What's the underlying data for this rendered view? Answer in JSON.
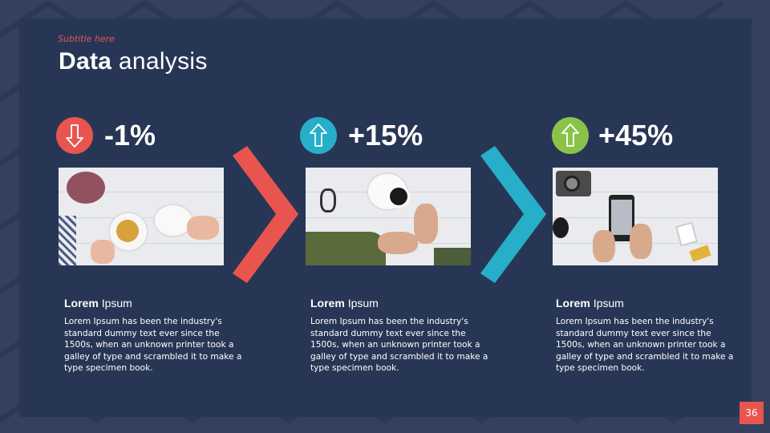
{
  "slide": {
    "subtitle": "Subtitle here",
    "title_bold": "Data",
    "title_light": "analysis",
    "page_number": "36"
  },
  "colors": {
    "red": "#e8554e",
    "blue": "#27aec9",
    "green": "#8bc34a",
    "panel": "#283655",
    "background": "#34405d"
  },
  "items": [
    {
      "value": "-1%",
      "icon": "arrow-down-icon",
      "color": "#e8554e",
      "heading_bold": "Lorem",
      "heading_light": "Ipsum",
      "text": "Lorem Ipsum has been the industry's standard dummy text ever since the 1500s, when an unknown printer took a galley of type and scrambled it to make a type specimen book."
    },
    {
      "value": "+15%",
      "icon": "arrow-up-icon",
      "color": "#27aec9",
      "heading_bold": "Lorem",
      "heading_light": "Ipsum",
      "text": "Lorem Ipsum has been the industry's standard dummy text ever since the 1500s, when an unknown printer took a galley of type and scrambled it to make a type specimen book."
    },
    {
      "value": "+45%",
      "icon": "arrow-up-icon",
      "color": "#8bc34a",
      "heading_bold": "Lorem",
      "heading_light": "Ipsum",
      "text": "Lorem Ipsum has been the industry's standard dummy text ever since the 1500s, when an unknown printer took a galley of type and scrambled it to make a type specimen book."
    }
  ]
}
